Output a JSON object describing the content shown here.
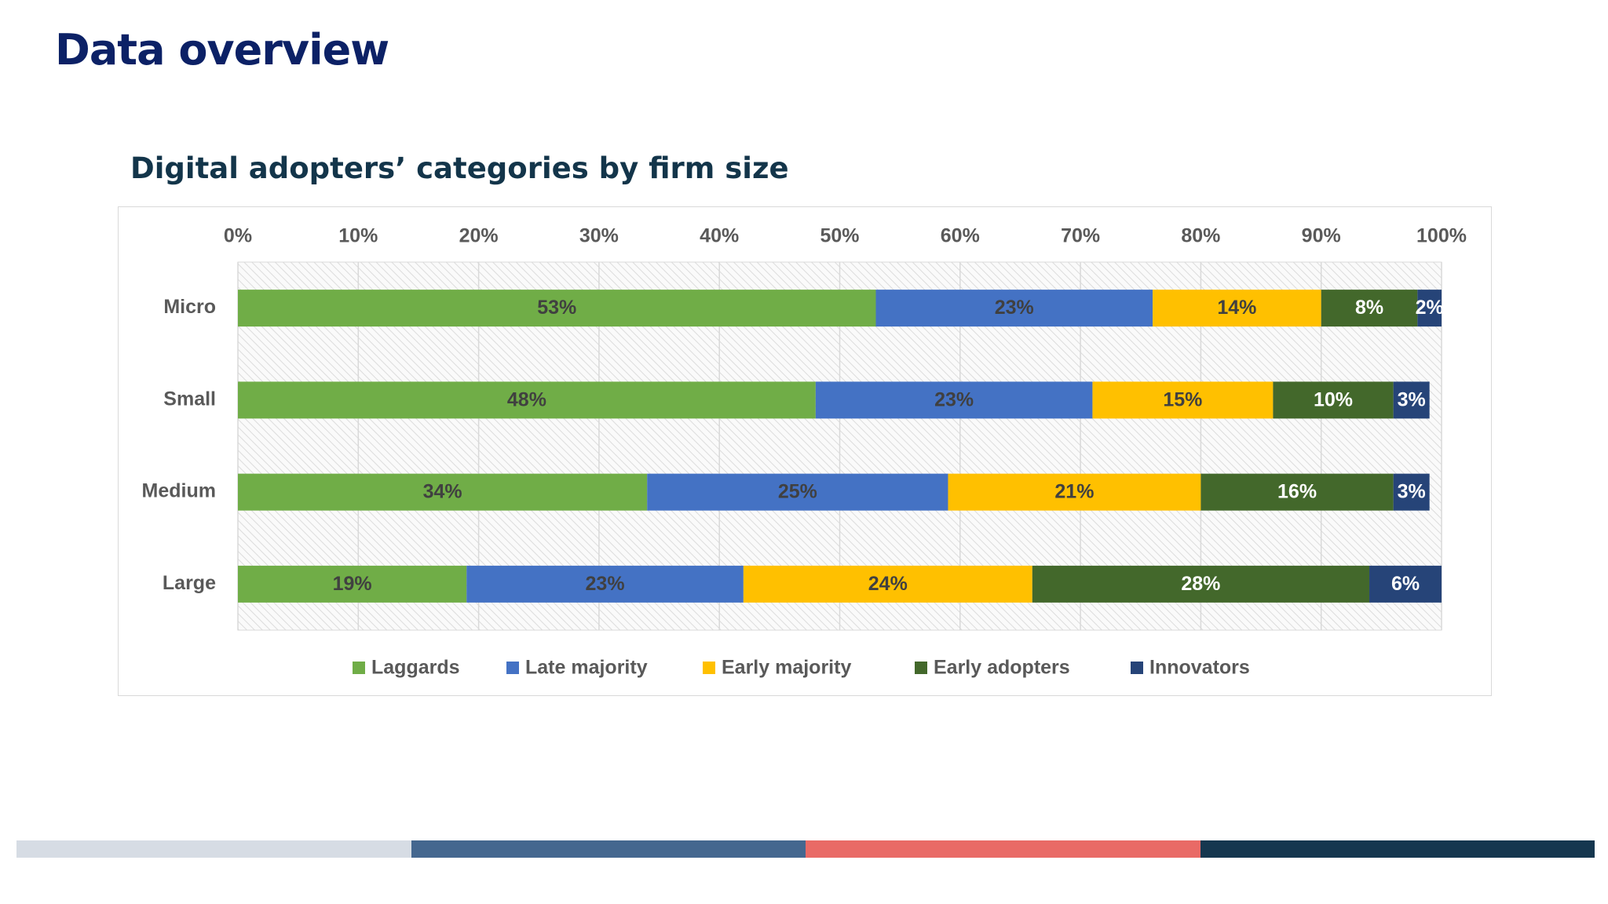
{
  "slide": {
    "title": "Data overview"
  },
  "chart_data": {
    "type": "bar",
    "orientation": "horizontal",
    "stacked": true,
    "title": "Digital adopters’ categories by firm size",
    "categories": [
      "Micro",
      "Small",
      "Medium",
      "Large"
    ],
    "series": [
      {
        "name": "Laggards",
        "values": [
          53,
          48,
          34,
          19
        ],
        "color": "#70ad47",
        "label_color": "#404040"
      },
      {
        "name": "Late majority",
        "values": [
          23,
          23,
          25,
          23
        ],
        "color": "#4472c4",
        "label_color": "#404040"
      },
      {
        "name": "Early majority",
        "values": [
          14,
          15,
          21,
          24
        ],
        "color": "#ffc000",
        "label_color": "#404040"
      },
      {
        "name": "Early adopters",
        "values": [
          8,
          10,
          16,
          28
        ],
        "color": "#43682b",
        "label_color": "#ffffff"
      },
      {
        "name": "Innovators",
        "values": [
          2,
          3,
          3,
          6
        ],
        "color": "#264478",
        "label_color": "#ffffff"
      }
    ],
    "data_labels": [
      [
        "53%",
        "23%",
        "14%",
        "8%",
        "2%"
      ],
      [
        "48%",
        "23%",
        "15%",
        "10%",
        "3%"
      ],
      [
        "34%",
        "25%",
        "21%",
        "16%",
        "3%"
      ],
      [
        "19%",
        "23%",
        "24%",
        "28%",
        "6%"
      ]
    ],
    "x_axis": {
      "position": "top",
      "range": [
        0,
        100
      ],
      "ticks": [
        "0%",
        "10%",
        "20%",
        "30%",
        "40%",
        "50%",
        "60%",
        "70%",
        "80%",
        "90%",
        "100%"
      ]
    },
    "gridlines": true,
    "legend_position": "bottom"
  },
  "decoration": {
    "bottom_bar_colors": [
      "#d6dce4",
      "#44678f",
      "#e96a66",
      "#15374f"
    ]
  }
}
